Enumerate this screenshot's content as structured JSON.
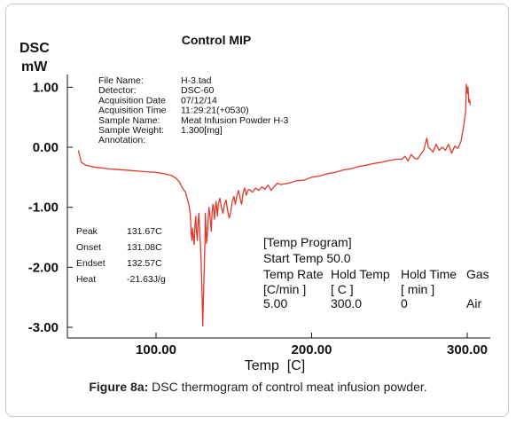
{
  "figure": {
    "caption_label": "Figure 8a:",
    "caption_text": " DSC thermogram of control meat infusion powder."
  },
  "chart_data": {
    "type": "line",
    "title": "Control MIP",
    "ylabel_line1": "DSC",
    "ylabel_line2": "mW",
    "xlabel": "Temp  [C]",
    "xlim": [
      42,
      308
    ],
    "ylim": [
      -3.2,
      1.2
    ],
    "x_ticks": [
      100,
      200,
      300
    ],
    "x_tick_labels": [
      "100.00",
      "200.00",
      "300.00"
    ],
    "y_ticks": [
      1,
      0,
      -1,
      -2,
      -3
    ],
    "y_tick_labels": [
      "1.00",
      "0.00",
      "-1.00",
      "-2.00",
      "-3.00"
    ],
    "line_color": "#e03a2a",
    "series": [
      {
        "x": [
          50,
          51,
          52,
          55,
          60,
          70,
          80,
          90,
          100,
          105,
          110,
          113,
          115,
          117,
          119,
          120,
          121,
          122,
          122.5,
          123,
          123.5,
          124,
          124.5,
          125,
          125.5,
          126,
          126.5,
          127,
          127.5,
          128,
          128.5,
          129,
          129.5,
          130,
          130.5,
          131,
          131.5,
          131.67,
          132,
          132.5,
          133,
          133.5,
          134,
          134.5,
          135,
          135.5,
          136,
          136.5,
          137,
          137.5,
          138,
          138.5,
          139,
          139.5,
          140,
          141,
          142,
          143,
          144,
          145,
          146,
          147,
          148,
          149,
          150,
          151,
          152,
          153,
          154,
          155,
          156,
          157,
          158,
          159,
          160,
          162,
          164,
          166,
          168,
          170,
          172,
          174,
          176,
          178,
          180,
          185,
          190,
          195,
          200,
          205,
          210,
          215,
          220,
          225,
          230,
          235,
          240,
          245,
          250,
          255,
          258,
          260,
          262,
          264,
          266,
          268,
          270,
          272,
          274,
          275,
          276,
          278,
          280,
          282,
          284,
          286,
          288,
          290,
          292,
          294,
          296,
          297,
          298,
          299,
          299.5,
          300,
          300.5,
          301,
          301.5,
          302
        ],
        "y": [
          -0.05,
          -0.15,
          -0.25,
          -0.3,
          -0.33,
          -0.36,
          -0.38,
          -0.4,
          -0.42,
          -0.44,
          -0.47,
          -0.52,
          -0.58,
          -0.68,
          -0.75,
          -0.85,
          -0.95,
          -1.1,
          -1.4,
          -1.55,
          -1.35,
          -1.5,
          -1.62,
          -1.3,
          -1.15,
          -1.4,
          -1.55,
          -1.25,
          -1.1,
          -1.35,
          -1.6,
          -1.9,
          -2.4,
          -2.98,
          -2.5,
          -2.0,
          -1.5,
          -1.1,
          -1.3,
          -1.6,
          -1.45,
          -1.2,
          -1.0,
          -1.1,
          -1.25,
          -1.4,
          -1.1,
          -0.95,
          -1.0,
          -1.2,
          -1.05,
          -0.9,
          -1.0,
          -1.15,
          -0.95,
          -0.85,
          -1.0,
          -1.1,
          -0.95,
          -0.88,
          -1.05,
          -1.18,
          -1.08,
          -0.9,
          -0.82,
          -0.95,
          -0.8,
          -0.72,
          -0.85,
          -0.95,
          -0.75,
          -0.68,
          -0.8,
          -0.72,
          -0.7,
          -0.75,
          -0.68,
          -0.72,
          -0.66,
          -0.7,
          -0.63,
          -0.72,
          -0.65,
          -0.6,
          -0.62,
          -0.6,
          -0.56,
          -0.55,
          -0.5,
          -0.48,
          -0.44,
          -0.42,
          -0.38,
          -0.36,
          -0.32,
          -0.3,
          -0.27,
          -0.25,
          -0.22,
          -0.2,
          -0.2,
          -0.15,
          -0.23,
          -0.12,
          -0.18,
          -0.2,
          -0.12,
          -0.05,
          0.15,
          0.0,
          -0.02,
          -0.08,
          0.05,
          -0.05,
          0.0,
          -0.05,
          0.05,
          -0.1,
          0.02,
          -0.02,
          0.1,
          0.25,
          0.4,
          0.6,
          1.05,
          0.9,
          1.0,
          0.75,
          0.8,
          0.7
        ]
      }
    ],
    "info_block": [
      {
        "label": "File Name:",
        "value": "H-3.tad"
      },
      {
        "label": "Detector:",
        "value": "DSC-60"
      },
      {
        "label": "Acquisition Date",
        "value": "07/12/14"
      },
      {
        "label": "Acquisition Time",
        "value": "11:29:21(+0530)"
      },
      {
        "label": "Sample Name:",
        "value": "Meat Infusion Powder H-3"
      },
      {
        "label": "Sample Weight:",
        "value": "1.300[mg]"
      },
      {
        "label": "Annotation:",
        "value": ""
      }
    ],
    "peak_block": [
      {
        "label": "Peak",
        "value": "131.67C"
      },
      {
        "label": "Onset",
        "value": "131.08C"
      },
      {
        "label": "Endset",
        "value": "132.57C"
      },
      {
        "label": "Heat",
        "value": "-21.63J/g"
      }
    ],
    "program_block": {
      "title": "[Temp Program]",
      "start": "Start Temp 50.0",
      "headers": [
        "Temp Rate",
        "Hold Temp",
        "Hold Time",
        "Gas"
      ],
      "units": [
        "[C/min ]",
        "[  C  ]",
        "[  min  ]",
        ""
      ],
      "values": [
        "5.00",
        "300.0",
        "0",
        "Air"
      ]
    }
  }
}
